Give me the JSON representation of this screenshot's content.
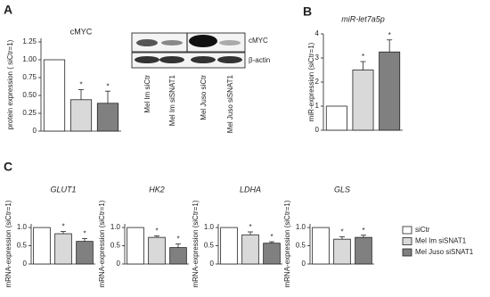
{
  "panel_labels": [
    "A",
    "B",
    "C"
  ],
  "blot": {
    "bands": [
      "cMYC",
      "β-actin"
    ],
    "lanes": [
      "Mel Im siCtr",
      "Mel Im siSNAT1",
      "Mel Juso siCtr",
      "Mel Juso siSNAT1"
    ]
  },
  "legend": [
    {
      "name": "siCtr",
      "color": "#ffffff"
    },
    {
      "name": "Mel Im siSNAT1",
      "color": "#d9d9d9"
    },
    {
      "name": "Mel Juso siSNAT1",
      "color": "#808080"
    }
  ],
  "chart_data": [
    {
      "type": "bar",
      "title": "cMYC",
      "title_italic": false,
      "y_label": "protein expression ( siCtr=1)",
      "values": [
        1,
        0.44,
        0.39
      ],
      "errors": [
        null,
        0.14,
        0.17
      ],
      "annotations": [
        null,
        "*",
        "*"
      ],
      "colors": [
        "#ffffff",
        "#d9d9d9",
        "#808080"
      ],
      "ylim": [
        0,
        1.3
      ],
      "yticks": [
        0,
        0.25,
        {
          "value": 0.5,
          "label": "0.50"
        },
        0.75,
        {
          "value": 1,
          "label": "1.00"
        },
        1.25
      ]
    },
    {
      "type": "bar",
      "title": "miR-let7a5p",
      "title_italic": true,
      "y_label": "miR-expression (siCtr=1)",
      "values": [
        1,
        2.5,
        3.25
      ],
      "errors": [
        null,
        0.35,
        0.5
      ],
      "annotations": [
        null,
        "*",
        "*"
      ],
      "colors": [
        "#ffffff",
        "#d9d9d9",
        "#808080"
      ],
      "ylim": [
        0,
        4
      ],
      "yticks": [
        0,
        1,
        2,
        3,
        4
      ]
    },
    {
      "type": "bar",
      "title": "GLUT1",
      "title_italic": true,
      "y_label": "mRNA-expression (siCtr=1)",
      "values": [
        1,
        0.83,
        0.62
      ],
      "errors": [
        null,
        0.06,
        0.08
      ],
      "annotations": [
        null,
        "*",
        "*"
      ],
      "colors": [
        "#ffffff",
        "#d9d9d9",
        "#808080"
      ],
      "ylim": [
        0,
        1.1
      ],
      "yticks": [
        0,
        0.5,
        {
          "value": 1,
          "label": "1.0"
        }
      ]
    },
    {
      "type": "bar",
      "title": "HK2",
      "title_italic": true,
      "y_label": "mRNA-expression (siCtr=1)",
      "values": [
        1,
        0.73,
        0.45
      ],
      "errors": [
        null,
        0.04,
        0.1
      ],
      "annotations": [
        null,
        "*",
        "*"
      ],
      "colors": [
        "#ffffff",
        "#d9d9d9",
        "#808080"
      ],
      "ylim": [
        0,
        1.1
      ],
      "yticks": [
        0,
        0.5,
        {
          "value": 1,
          "label": "1.0"
        }
      ]
    },
    {
      "type": "bar",
      "title": "LDHA",
      "title_italic": true,
      "y_label": "mRNA-expression (siCtr=1)",
      "values": [
        1,
        0.8,
        0.57
      ],
      "errors": [
        null,
        0.08,
        0.04
      ],
      "annotations": [
        null,
        "*",
        "*"
      ],
      "colors": [
        "#ffffff",
        "#d9d9d9",
        "#808080"
      ],
      "ylim": [
        0,
        1.1
      ],
      "yticks": [
        0,
        0.5,
        {
          "value": 1,
          "label": "1.0"
        }
      ]
    },
    {
      "type": "bar",
      "title": "GLS",
      "title_italic": true,
      "y_label": "mRNA-expression (siCtr=1)",
      "values": [
        1,
        0.68,
        0.73
      ],
      "errors": [
        null,
        0.07,
        0.06
      ],
      "annotations": [
        null,
        "*",
        "*"
      ],
      "colors": [
        "#ffffff",
        "#d9d9d9",
        "#808080"
      ],
      "ylim": [
        0,
        1.1
      ],
      "yticks": [
        0,
        0.5,
        {
          "value": 1,
          "label": "1.0"
        }
      ]
    }
  ]
}
